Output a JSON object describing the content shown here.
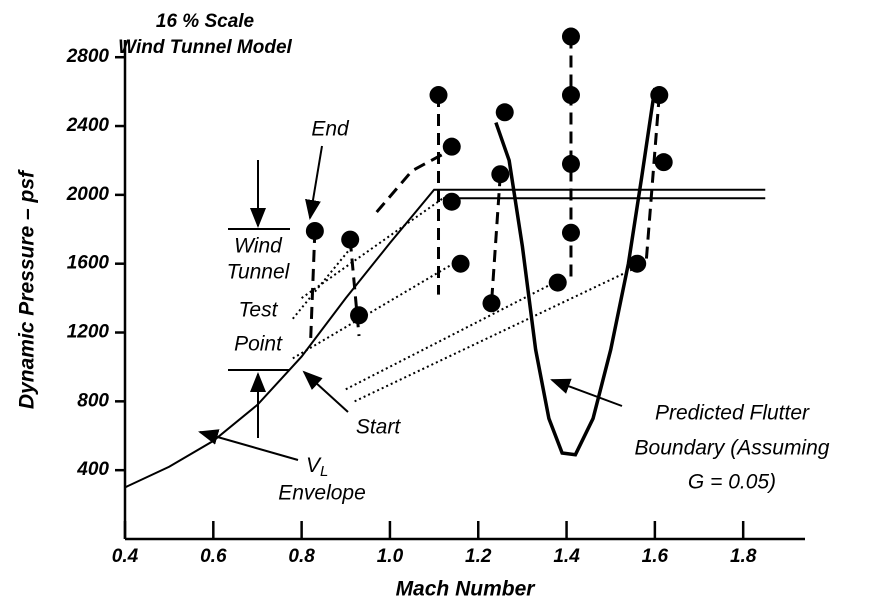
{
  "chart_data": {
    "type": "scatter",
    "title": "16 % Scale",
    "subtitle": "Wind Tunnel Model",
    "x_label": "Mach Number",
    "y_label": "Dynamic Pressure – psf",
    "x": [
      0.83,
      0.91,
      0.93,
      1.11,
      1.14,
      1.14,
      1.16,
      1.23,
      1.25,
      1.26,
      1.38,
      1.41,
      1.41,
      1.41,
      1.41,
      1.56,
      1.61,
      1.62
    ],
    "values": [
      1790,
      1740,
      1300,
      2580,
      2280,
      1960,
      1600,
      1370,
      2120,
      2480,
      1490,
      2920,
      2580,
      2180,
      1780,
      1600,
      2580,
      2190
    ],
    "color": "#000000",
    "lines": [
      {
        "style": "solid-thin",
        "x": [
          0.4,
          0.5,
          0.6,
          0.7,
          0.8,
          0.9,
          1.0,
          1.1,
          1.85
        ],
        "y": [
          300,
          420,
          570,
          780,
          1060,
          1400,
          1720,
          2030,
          2030
        ]
      },
      {
        "style": "solid-thin",
        "x": [
          1.12,
          1.85
        ],
        "y": [
          1980,
          1980
        ]
      },
      {
        "style": "solid-thick",
        "x": [
          1.24,
          1.27,
          1.3,
          1.33,
          1.36,
          1.39,
          1.42,
          1.46,
          1.5,
          1.54,
          1.57,
          1.6
        ],
        "y": [
          2420,
          2200,
          1700,
          1100,
          700,
          500,
          490,
          700,
          1100,
          1600,
          2100,
          2620
        ]
      },
      {
        "style": "dashed",
        "x": [
          0.83,
          0.82
        ],
        "y": [
          1790,
          1130
        ]
      },
      {
        "style": "dashed",
        "x": [
          0.91,
          0.93
        ],
        "y": [
          1740,
          1180
        ]
      },
      {
        "style": "dashed",
        "x": [
          1.11,
          1.11
        ],
        "y": [
          2580,
          1420
        ]
      },
      {
        "style": "dashed",
        "x": [
          1.25,
          1.23
        ],
        "y": [
          2120,
          1370
        ]
      },
      {
        "style": "dashed",
        "x": [
          1.41,
          1.41
        ],
        "y": [
          2920,
          1500
        ]
      },
      {
        "style": "dashed",
        "x": [
          1.61,
          1.58
        ],
        "y": [
          2580,
          1600
        ]
      },
      {
        "style": "dashed",
        "x": [
          0.97,
          1.05,
          1.13
        ],
        "y": [
          1900,
          2140,
          2250
        ]
      },
      {
        "style": "dotted",
        "x": [
          0.78,
          0.93
        ],
        "y": [
          1280,
          1750
        ]
      },
      {
        "style": "dotted",
        "x": [
          0.78,
          1.15
        ],
        "y": [
          1050,
          1610
        ]
      },
      {
        "style": "dotted",
        "x": [
          0.8,
          1.12
        ],
        "y": [
          1400,
          1980
        ]
      },
      {
        "style": "dotted",
        "x": [
          0.92,
          1.56
        ],
        "y": [
          800,
          1580
        ]
      },
      {
        "style": "dotted",
        "x": [
          0.9,
          1.38
        ],
        "y": [
          870,
          1500
        ]
      }
    ],
    "xlim": [
      0.4,
      1.94
    ],
    "ylim": [
      0,
      2900
    ],
    "xticks": [
      0.4,
      0.6,
      0.8,
      {
        "value": 1,
        "label": "1.0"
      },
      1.2,
      1.4,
      1.6,
      1.8
    ],
    "yticks": [
      400,
      800,
      1200,
      1600,
      2000,
      2400,
      2800
    ],
    "annotations": {
      "end": "End",
      "start": "Start",
      "test_point": [
        "Wind",
        "Tunnel",
        "Test",
        "Point"
      ],
      "vl_symbol": "V",
      "vl_subscript": "L",
      "vl_envelope": "Envelope",
      "flutter": [
        "Predicted Flutter",
        "Boundary (Assuming",
        "G = 0.05)"
      ]
    }
  }
}
